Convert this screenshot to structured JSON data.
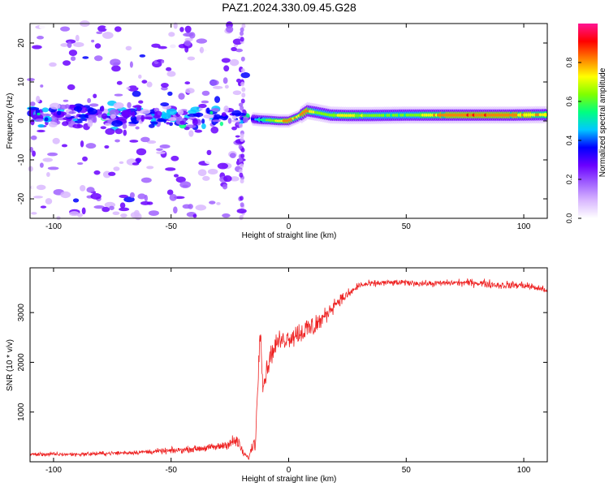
{
  "title": "PAZ1.2024.330.09.45.G28",
  "chart_data": [
    {
      "type": "heatmap",
      "xlabel": "Height of straight line (km)",
      "ylabel": "Frequency (Hz)",
      "xlim": [
        -110,
        110
      ],
      "ylim": [
        -25,
        25
      ],
      "xticks": [
        -100,
        -50,
        0,
        50,
        100
      ],
      "yticks": [
        -20,
        -10,
        0,
        10,
        20
      ],
      "colorbar": {
        "label": "Normalized spectral amplitude",
        "range": [
          0,
          1
        ],
        "ticks": [
          0.0,
          0.2,
          0.4,
          0.6,
          0.8
        ],
        "tick_labels": [
          "0.0",
          "0.2",
          "0.4",
          "0.6",
          "0.8"
        ],
        "colors": [
          "#ffffff",
          "#d9b8ff",
          "#a060ff",
          "#6a00ff",
          "#0000ff",
          "#00c8ff",
          "#00ff80",
          "#80ff00",
          "#ffff00",
          "#ff8000",
          "#ff0000",
          "#ff1493"
        ]
      },
      "ridge": [
        {
          "x": -15,
          "y": 0.5,
          "amplitude": 0.35
        },
        {
          "x": -12,
          "y": 0.3,
          "amplitude": 0.5
        },
        {
          "x": -8,
          "y": 0.2,
          "amplitude": 0.6
        },
        {
          "x": -4,
          "y": 0.0,
          "amplitude": 0.7
        },
        {
          "x": 0,
          "y": 0.0,
          "amplitude": 0.8
        },
        {
          "x": 4,
          "y": 1.0,
          "amplitude": 0.7
        },
        {
          "x": 8,
          "y": 2.6,
          "amplitude": 0.8
        },
        {
          "x": 12,
          "y": 2.2,
          "amplitude": 0.6
        },
        {
          "x": 18,
          "y": 1.5,
          "amplitude": 0.6
        },
        {
          "x": 25,
          "y": 1.4,
          "amplitude": 0.7
        },
        {
          "x": 35,
          "y": 1.4,
          "amplitude": 0.6
        },
        {
          "x": 50,
          "y": 1.5,
          "amplitude": 0.55
        },
        {
          "x": 65,
          "y": 1.5,
          "amplitude": 0.75
        },
        {
          "x": 80,
          "y": 1.5,
          "amplitude": 0.8
        },
        {
          "x": 95,
          "y": 1.5,
          "amplitude": 0.75
        },
        {
          "x": 110,
          "y": 1.6,
          "amplitude": 0.7
        }
      ],
      "scatter_region": {
        "x": [
          -110,
          -18
        ],
        "y": [
          -25,
          25
        ],
        "amplitude": [
          0.05,
          0.35
        ]
      }
    },
    {
      "type": "line",
      "xlabel": "Height of straight line (km)",
      "ylabel": "SNR (10 * v/v)",
      "xlim": [
        -110,
        110
      ],
      "ylim": [
        0,
        3900
      ],
      "xticks": [
        -100,
        -50,
        0,
        50,
        100
      ],
      "yticks": [
        1000,
        2000,
        3000
      ],
      "color": "#ee2222",
      "series": [
        {
          "x": [
            -110,
            -90,
            -70,
            -50,
            -40,
            -30,
            -22,
            -19,
            -17,
            -14,
            -12,
            -11,
            -8,
            -5,
            0,
            5,
            10,
            15,
            20,
            25,
            30,
            40,
            50,
            60,
            70,
            80,
            90,
            100,
            110
          ],
          "values": [
            150,
            150,
            180,
            220,
            260,
            300,
            420,
            150,
            80,
            500,
            2900,
            1500,
            2100,
            2400,
            2500,
            2600,
            2700,
            2900,
            3200,
            3350,
            3550,
            3600,
            3600,
            3580,
            3600,
            3600,
            3550,
            3550,
            3450
          ],
          "noise": [
            100,
            100,
            100,
            150,
            150,
            200,
            350,
            150,
            100,
            600,
            700,
            500,
            500,
            500,
            500,
            600,
            700,
            400,
            300,
            250,
            180,
            150,
            150,
            150,
            150,
            200,
            200,
            200,
            150
          ]
        }
      ]
    }
  ]
}
